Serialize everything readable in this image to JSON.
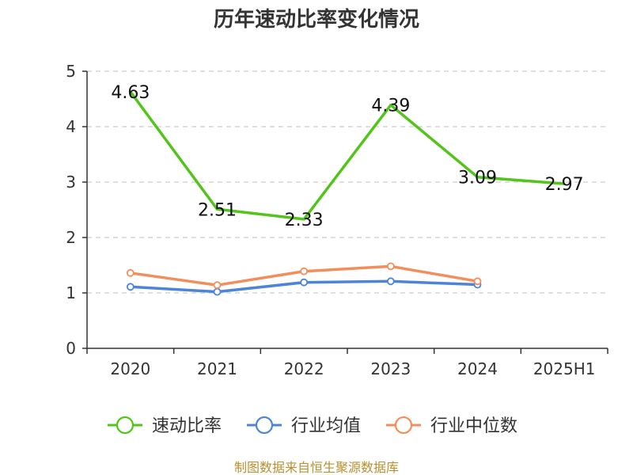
{
  "chart_data": {
    "type": "line",
    "title": "历年速动比率变化情况",
    "categories": [
      "2020",
      "2021",
      "2022",
      "2023",
      "2024",
      "2025H1"
    ],
    "ylim": [
      0,
      5
    ],
    "yticks": [
      "0",
      "1",
      "2",
      "3",
      "4",
      "5"
    ],
    "grid": true,
    "legend_position": "bottom",
    "series": [
      {
        "name": "速动比率",
        "color": "#52c41a",
        "values": [
          4.63,
          2.51,
          2.33,
          4.39,
          3.09,
          2.97
        ],
        "labels": [
          "4.63",
          "2.51",
          "2.33",
          "4.39",
          "3.09",
          "2.97"
        ],
        "show_labels": true
      },
      {
        "name": "行业均值",
        "color": "#4e84d8",
        "values": [
          1.11,
          1.02,
          1.19,
          1.21,
          1.15,
          null
        ],
        "show_labels": false
      },
      {
        "name": "行业中位数",
        "color": "#f28e5c",
        "values": [
          1.36,
          1.14,
          1.39,
          1.48,
          1.21,
          null
        ],
        "show_labels": false
      }
    ]
  },
  "footer": {
    "source": "制图数据来自恒生聚源数据库"
  }
}
